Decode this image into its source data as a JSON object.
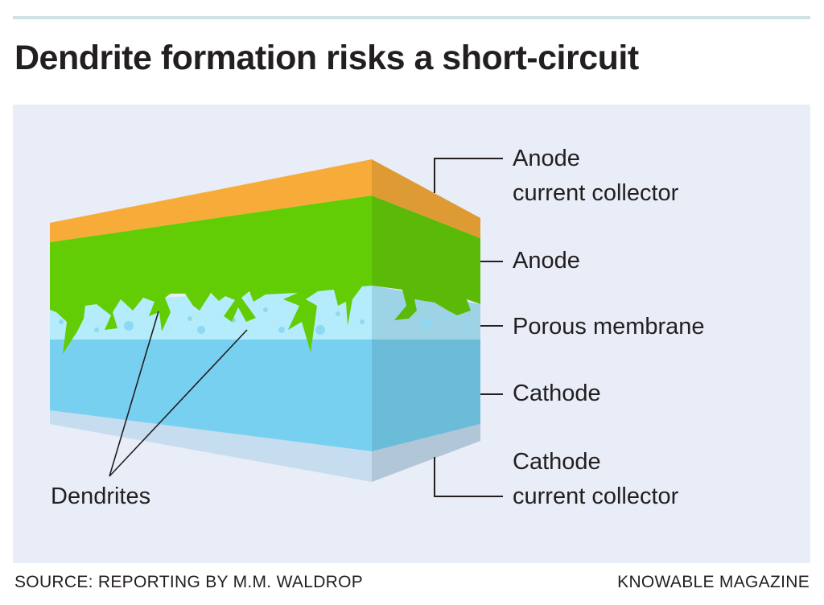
{
  "title": "Dendrite formation risks a short-circuit",
  "labels": {
    "anode_cc_1": "Anode",
    "anode_cc_2": "current collector",
    "anode": "Anode",
    "membrane": "Porous membrane",
    "cathode": "Cathode",
    "cathode_cc_1": "Cathode",
    "cathode_cc_2": "current collector",
    "dendrites": "Dendrites"
  },
  "colors": {
    "anode_cc": "#f7ac3a",
    "anode": "#62cd04",
    "membrane": "#b4ecfb",
    "cathode": "#78d0f1",
    "cathode_cc": "#c6dcef",
    "background": "#e8edf7"
  },
  "footer": {
    "source": "SOURCE: REPORTING BY M.M. WALDROP",
    "publisher": "KNOWABLE MAGAZINE"
  }
}
